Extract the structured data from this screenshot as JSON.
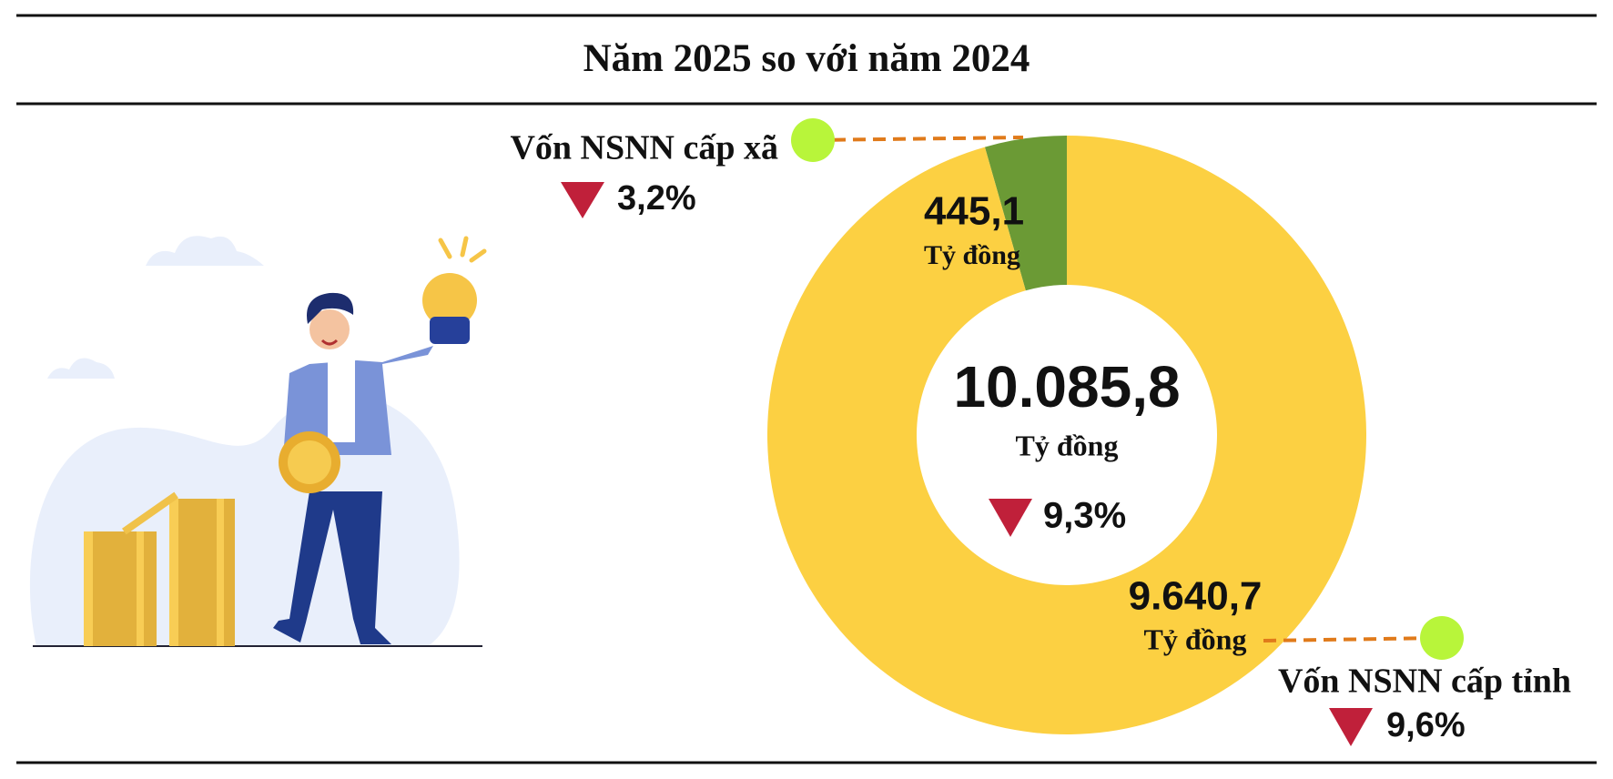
{
  "chart_data": {
    "type": "donut",
    "title": "Năm 2025 so với năm 2024",
    "categories": [
      "Vốn NSNN cấp xã",
      "Vốn NSNN cấp tỉnh"
    ],
    "values": [
      445.1,
      9640.7
    ],
    "value_labels": [
      "445,1",
      "9.640,7"
    ],
    "colors": [
      "#6b9a35",
      "#fcd042"
    ],
    "unit": "Tỷ đồng",
    "changes": [
      3.2,
      9.6
    ],
    "change_labels": [
      "3,2%",
      "9,6%"
    ],
    "total": {
      "value": 10085.8,
      "label": "10.085,8"
    },
    "total_change": {
      "value": 9.3,
      "label": "9,3%"
    }
  }
}
